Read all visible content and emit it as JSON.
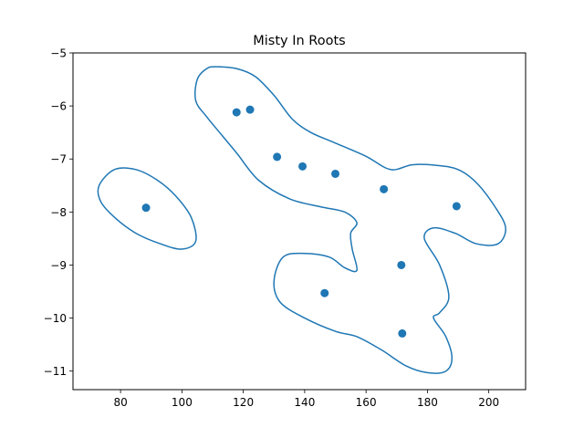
{
  "chart_data": {
    "type": "scatter",
    "title": "Misty In Roots",
    "xlabel": "",
    "ylabel": "",
    "xlim": [
      64.5,
      212
    ],
    "ylim": [
      -11.35,
      -5
    ],
    "xticks": [
      80,
      100,
      120,
      140,
      160,
      180,
      200
    ],
    "yticks": [
      -11,
      -10,
      -9,
      -8,
      -7,
      -6,
      -5
    ],
    "xtick_labels": [
      "80",
      "100",
      "120",
      "140",
      "160",
      "180",
      "200"
    ],
    "ytick_labels": [
      "−11",
      "−10",
      "−9",
      "−8",
      "−7",
      "−6",
      "−5"
    ],
    "grid": false,
    "color": "#1f77b4",
    "points": [
      {
        "x": 88.3,
        "y": -7.92
      },
      {
        "x": 117.8,
        "y": -6.12
      },
      {
        "x": 122.2,
        "y": -6.07
      },
      {
        "x": 131.0,
        "y": -6.96
      },
      {
        "x": 139.3,
        "y": -7.14
      },
      {
        "x": 150.0,
        "y": -7.28
      },
      {
        "x": 165.8,
        "y": -7.57
      },
      {
        "x": 189.5,
        "y": -7.89
      },
      {
        "x": 171.5,
        "y": -9.0
      },
      {
        "x": 146.5,
        "y": -9.53
      },
      {
        "x": 171.8,
        "y": -10.29
      }
    ],
    "contours": [
      [
        [
          73,
          -7.5
        ],
        [
          78,
          -7.2
        ],
        [
          85,
          -7.2
        ],
        [
          92,
          -7.4
        ],
        [
          98,
          -7.7
        ],
        [
          103,
          -8.1
        ],
        [
          104.5,
          -8.55
        ],
        [
          100,
          -8.7
        ],
        [
          93,
          -8.6
        ],
        [
          85,
          -8.4
        ],
        [
          78,
          -8.1
        ],
        [
          73.5,
          -7.8
        ]
      ],
      [
        [
          111,
          -5.26
        ],
        [
          118,
          -5.3
        ],
        [
          124,
          -5.45
        ],
        [
          130,
          -5.8
        ],
        [
          136,
          -6.25
        ],
        [
          142,
          -6.5
        ],
        [
          150,
          -6.7
        ],
        [
          160,
          -6.95
        ],
        [
          168,
          -7.2
        ],
        [
          175,
          -7.11
        ],
        [
          183,
          -7.12
        ],
        [
          190,
          -7.2
        ],
        [
          196,
          -7.45
        ],
        [
          202,
          -7.9
        ],
        [
          205.5,
          -8.3
        ],
        [
          203,
          -8.6
        ],
        [
          196,
          -8.6
        ],
        [
          189,
          -8.4
        ],
        [
          182,
          -8.3
        ],
        [
          179,
          -8.5
        ],
        [
          184,
          -9.0
        ],
        [
          187,
          -9.6
        ],
        [
          184,
          -9.9
        ],
        [
          182,
          -10.0
        ],
        [
          186,
          -10.35
        ],
        [
          188,
          -10.75
        ],
        [
          186,
          -11.0
        ],
        [
          180,
          -11.03
        ],
        [
          173,
          -10.9
        ],
        [
          165,
          -10.6
        ],
        [
          157,
          -10.35
        ],
        [
          150,
          -10.25
        ],
        [
          140,
          -10.0
        ],
        [
          132,
          -9.7
        ],
        [
          130,
          -9.3
        ],
        [
          133,
          -8.85
        ],
        [
          140,
          -8.78
        ],
        [
          148,
          -8.85
        ],
        [
          153,
          -9.05
        ],
        [
          157,
          -9.1
        ],
        [
          155.5,
          -8.7
        ],
        [
          155,
          -8.4
        ],
        [
          157,
          -8.2
        ],
        [
          153,
          -8.0
        ],
        [
          145,
          -7.9
        ],
        [
          135,
          -7.75
        ],
        [
          125,
          -7.4
        ],
        [
          118,
          -6.9
        ],
        [
          113,
          -6.55
        ],
        [
          108,
          -6.2
        ],
        [
          104.5,
          -5.9
        ],
        [
          105,
          -5.5
        ],
        [
          108,
          -5.3
        ]
      ]
    ]
  }
}
